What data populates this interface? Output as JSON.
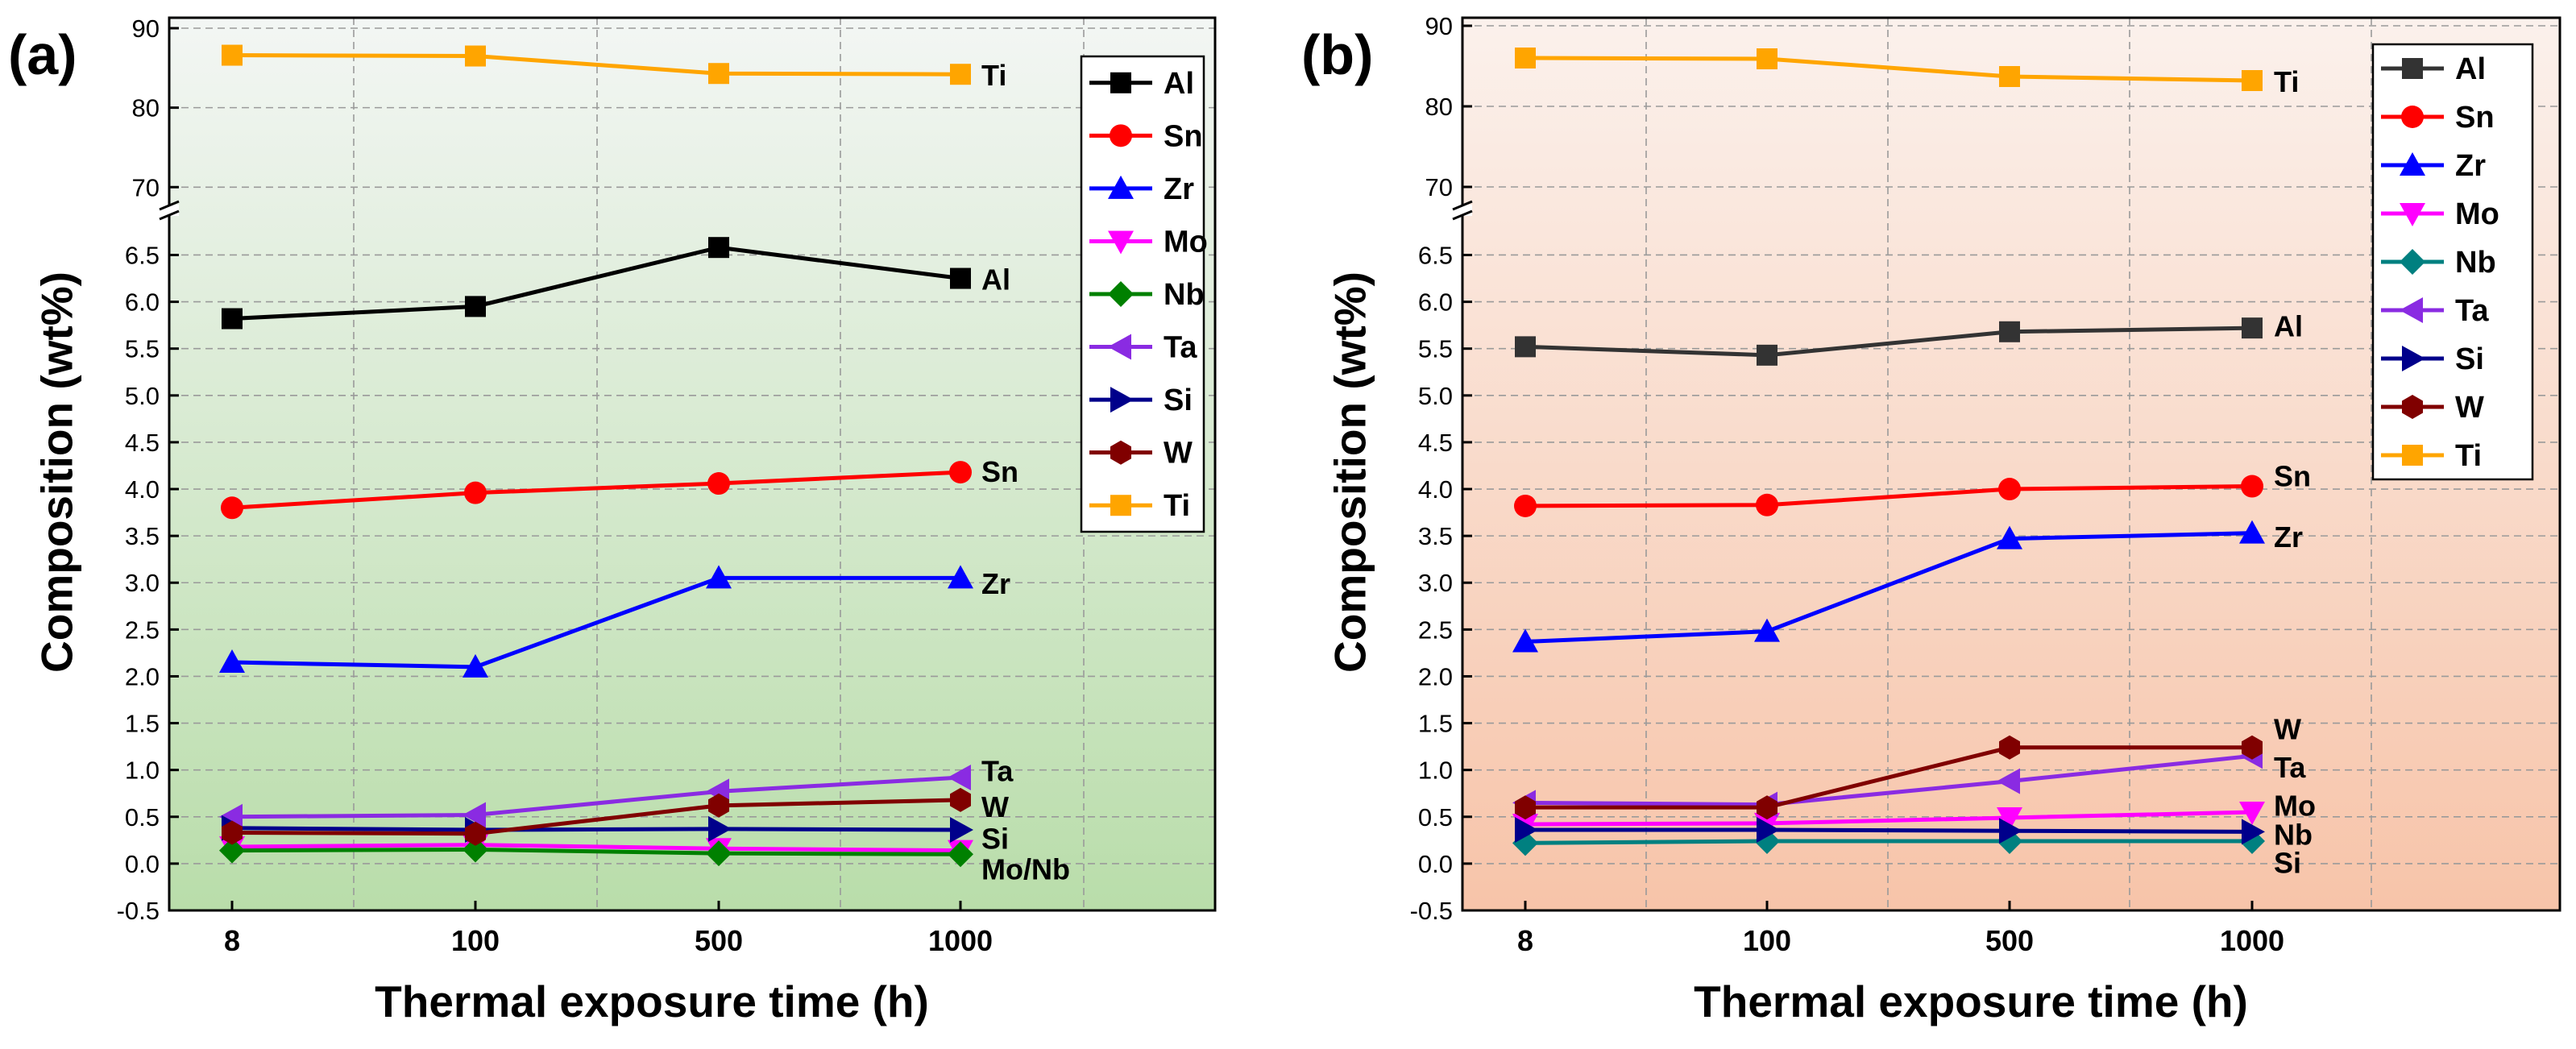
{
  "chart_data": [
    {
      "panel_label": "(a)",
      "type": "line",
      "background": [
        "#f3f6f4",
        "#b9ddaa"
      ],
      "xlabel": "Thermal exposure time (h)",
      "ylabel": "Composition (wt%)",
      "categories": [
        "8",
        "100",
        "500",
        "1000"
      ],
      "y_lower": {
        "ylim": [
          -0.5,
          6.9
        ],
        "ticks": [
          "-0.5",
          "0.0",
          "0.5",
          "1.0",
          "1.5",
          "2.0",
          "2.5",
          "3.0",
          "3.5",
          "4.0",
          "4.5",
          "5.0",
          "5.5",
          "6.0",
          "6.5"
        ]
      },
      "y_upper": {
        "ylim": [
          68,
          90
        ],
        "ticks": [
          "70",
          "80",
          "90"
        ]
      },
      "legend_position": "top-right",
      "series": [
        {
          "name": "Al",
          "color": "#000000",
          "marker": "square",
          "values": [
            5.82,
            5.95,
            6.58,
            6.25
          ]
        },
        {
          "name": "Sn",
          "color": "#ff0000",
          "marker": "circle",
          "values": [
            3.8,
            3.96,
            4.06,
            4.18
          ]
        },
        {
          "name": "Zr",
          "color": "#0000ff",
          "marker": "triangle-up",
          "values": [
            2.15,
            2.1,
            3.05,
            3.05
          ]
        },
        {
          "name": "Mo",
          "color": "#ff00ff",
          "marker": "triangle-down",
          "values": [
            0.18,
            0.2,
            0.16,
            0.14
          ]
        },
        {
          "name": "Nb",
          "color": "#008000",
          "marker": "diamond",
          "values": [
            0.14,
            0.15,
            0.11,
            0.1
          ]
        },
        {
          "name": "Ta",
          "color": "#8a2be2",
          "marker": "triangle-left",
          "values": [
            0.5,
            0.52,
            0.77,
            0.92
          ]
        },
        {
          "name": "Si",
          "color": "#00008b",
          "marker": "triangle-right",
          "values": [
            0.38,
            0.36,
            0.37,
            0.36
          ]
        },
        {
          "name": "W",
          "color": "#800000",
          "marker": "hexagon",
          "values": [
            0.33,
            0.32,
            0.62,
            0.68
          ]
        },
        {
          "name": "Ti",
          "color": "#ffa500",
          "marker": "square",
          "axis": "upper",
          "values": [
            86.6,
            86.5,
            84.3,
            84.2
          ]
        }
      ],
      "annotations": [
        {
          "text": "Ti",
          "y": 84.2,
          "axis": "upper"
        },
        {
          "text": "Al",
          "y": 6.25
        },
        {
          "text": "Sn",
          "y": 4.2
        },
        {
          "text": "Zr",
          "y": 3.0
        },
        {
          "text": "Ta",
          "y": 1.0
        },
        {
          "text": "W",
          "y": 0.62
        },
        {
          "text": "Si",
          "y": 0.28
        },
        {
          "text": "Mo/Nb",
          "y": -0.05
        }
      ]
    },
    {
      "panel_label": "(b)",
      "type": "line",
      "background": [
        "#fbf1ec",
        "#f7c4a9"
      ],
      "xlabel": "Thermal exposure time (h)",
      "ylabel": "Composition (wt%)",
      "categories": [
        "8",
        "100",
        "500",
        "1000"
      ],
      "y_lower": {
        "ylim": [
          -0.5,
          6.9
        ],
        "ticks": [
          "-0.5",
          "0.0",
          "0.5",
          "1.0",
          "1.5",
          "2.0",
          "2.5",
          "3.0",
          "3.5",
          "4.0",
          "4.5",
          "5.0",
          "5.5",
          "6.0",
          "6.5"
        ]
      },
      "y_upper": {
        "ylim": [
          68,
          90
        ],
        "ticks": [
          "70",
          "80",
          "90"
        ]
      },
      "legend_position": "top-right",
      "series": [
        {
          "name": "Al",
          "color": "#333333",
          "marker": "square",
          "values": [
            5.52,
            5.43,
            5.68,
            5.72
          ]
        },
        {
          "name": "Sn",
          "color": "#ff0000",
          "marker": "circle",
          "values": [
            3.82,
            3.83,
            4.0,
            4.03
          ]
        },
        {
          "name": "Zr",
          "color": "#0000ff",
          "marker": "triangle-up",
          "values": [
            2.37,
            2.48,
            3.47,
            3.53
          ]
        },
        {
          "name": "Mo",
          "color": "#ff00ff",
          "marker": "triangle-down",
          "values": [
            0.42,
            0.43,
            0.49,
            0.55
          ]
        },
        {
          "name": "Nb",
          "color": "#008080",
          "marker": "diamond",
          "values": [
            0.22,
            0.24,
            0.24,
            0.24
          ]
        },
        {
          "name": "Ta",
          "color": "#8a2be2",
          "marker": "triangle-left",
          "values": [
            0.65,
            0.63,
            0.88,
            1.15
          ]
        },
        {
          "name": "Si",
          "color": "#00008b",
          "marker": "triangle-right",
          "values": [
            0.36,
            0.36,
            0.35,
            0.34
          ]
        },
        {
          "name": "W",
          "color": "#800000",
          "marker": "hexagon",
          "values": [
            0.6,
            0.6,
            1.24,
            1.24
          ]
        },
        {
          "name": "Ti",
          "color": "#ffa500",
          "marker": "square",
          "axis": "upper",
          "values": [
            86.0,
            85.9,
            83.7,
            83.2
          ]
        }
      ],
      "annotations": [
        {
          "text": "Ti",
          "y": 83.2,
          "axis": "upper"
        },
        {
          "text": "Al",
          "y": 5.75
        },
        {
          "text": "Sn",
          "y": 4.15
        },
        {
          "text": "Zr",
          "y": 3.5
        },
        {
          "text": "W",
          "y": 1.45
        },
        {
          "text": "Ta",
          "y": 1.04
        },
        {
          "text": "Mo",
          "y": 0.63
        },
        {
          "text": "Nb",
          "y": 0.32
        },
        {
          "text": "Si",
          "y": 0.02
        }
      ]
    }
  ]
}
